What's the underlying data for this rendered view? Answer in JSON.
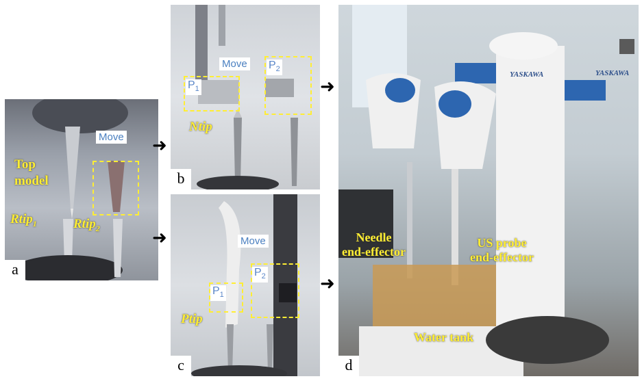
{
  "panels": {
    "a": {
      "letter": "a",
      "labels": {
        "top_model_1": "Top",
        "top_model_2": "model",
        "rtip1": "Rtip",
        "rtip1_sub": "1",
        "rtip2": "Rtip",
        "rtip2_sub": "2",
        "move": "Move"
      }
    },
    "b": {
      "letter": "b",
      "labels": {
        "move": "Move",
        "p1": "P",
        "p1_sub": "1",
        "p2": "P",
        "p2_sub": "2",
        "ntip": "Ntip"
      }
    },
    "c": {
      "letter": "c",
      "labels": {
        "move": "Move",
        "p1": "P",
        "p1_sub": "1",
        "p2": "P",
        "p2_sub": "2",
        "ptip": "Ptip"
      }
    },
    "d": {
      "letter": "d",
      "labels": {
        "needle_1": "Needle",
        "needle_2": "end-effector",
        "us_1": "US probe",
        "us_2": "end-effector",
        "water_tank": "Water tank",
        "brand_1": "YASKAWA",
        "brand_2": "YASKAWA"
      }
    }
  },
  "colors": {
    "annotation_yellow": "#ffee33",
    "label_blue": "#4a7fc0"
  }
}
